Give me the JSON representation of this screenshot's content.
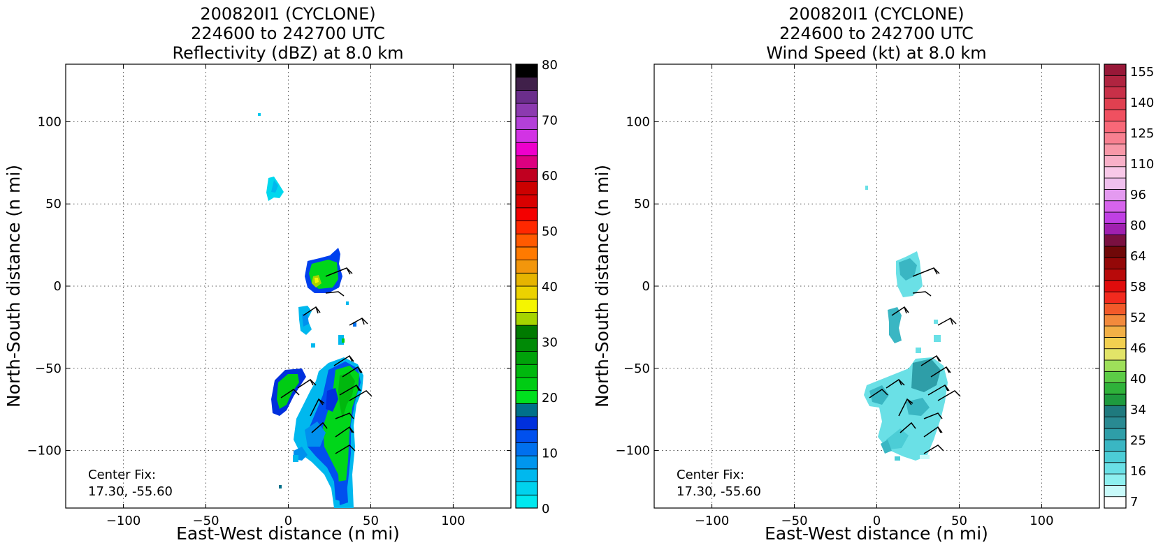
{
  "panels": [
    {
      "title": [
        "200820I1 (CYCLONE)",
        "224600 to 242700 UTC",
        "Reflectivity (dBZ) at 8.0 km"
      ],
      "xlabel": "East-West distance (n mi)",
      "ylabel": "North-South distance (n mi)",
      "xlim": [
        -135,
        135
      ],
      "ylim": [
        -135,
        135
      ],
      "xticks": [
        -100,
        -50,
        0,
        50,
        100
      ],
      "yticks": [
        -100,
        -50,
        0,
        50,
        100
      ],
      "center_fix_label": "Center Fix:",
      "center_fix_value": "17.30, -55.60",
      "colorbar": {
        "label_ticks": [
          "0",
          "10",
          "20",
          "30",
          "40",
          "50",
          "60",
          "70",
          "80"
        ],
        "colors": [
          "#00e8ef",
          "#00d2ee",
          "#00b8ee",
          "#0096ee",
          "#0070ee",
          "#0050ee",
          "#0030dd",
          "#00708a",
          "#00e01e",
          "#00cc14",
          "#00b80e",
          "#00a20a",
          "#008a06",
          "#007a00",
          "#a6d400",
          "#f5f500",
          "#ecd200",
          "#e6b400",
          "#f2960c",
          "#ff7a00",
          "#ff5a00",
          "#ff2800",
          "#f40000",
          "#d90000",
          "#cc0000",
          "#c00020",
          "#dd0080",
          "#ee00cc",
          "#d233e4",
          "#b340d9",
          "#8c3ab0",
          "#6b2e8c",
          "#40204a",
          "#000000"
        ]
      }
    },
    {
      "title": [
        "200820I1 (CYCLONE)",
        "224600 to 242700 UTC",
        "Wind Speed (kt) at 8.0 km"
      ],
      "xlabel": "East-West distance (n mi)",
      "ylabel": "North-South distance (n mi)",
      "xlim": [
        -135,
        135
      ],
      "ylim": [
        -135,
        135
      ],
      "xticks": [
        -100,
        -50,
        0,
        50,
        100
      ],
      "yticks": [
        -100,
        -50,
        0,
        50,
        100
      ],
      "center_fix_label": "Center Fix:",
      "center_fix_value": "17.30, -55.60",
      "colorbar": {
        "label_ticks": [
          "7",
          "16",
          "25",
          "34",
          "40",
          "46",
          "52",
          "58",
          "64",
          "80",
          "96",
          "110",
          "125",
          "140",
          "155"
        ],
        "colors": [
          "#ffffff",
          "#c8fafa",
          "#8ef0f0",
          "#6ae0e6",
          "#4ccdd6",
          "#3ab6c3",
          "#2e9ea8",
          "#298a92",
          "#1f7a7e",
          "#1e9a3e",
          "#2fb23a",
          "#5ccc46",
          "#9ee05a",
          "#e2e468",
          "#f2d050",
          "#f2b046",
          "#f28a3c",
          "#f25a2a",
          "#f22a1e",
          "#e00c0c",
          "#b80a0a",
          "#940808",
          "#700808",
          "#7a1040",
          "#a020b0",
          "#c040e4",
          "#d664ec",
          "#e49af0",
          "#f0c0ee",
          "#f8c8e8",
          "#f8b0c8",
          "#f898a8",
          "#f88090",
          "#f86878",
          "#f05060",
          "#e04050",
          "#c83048",
          "#b02440",
          "#981838"
        ]
      }
    }
  ],
  "chart_data": [
    {
      "type": "heatmap",
      "title": "200820I1 (CYCLONE) 224600 to 242700 UTC Reflectivity (dBZ) at 8.0 km",
      "xlabel": "East-West distance (n mi)",
      "ylabel": "North-South distance (n mi)",
      "xlim": [
        -135,
        135
      ],
      "ylim": [
        -135,
        135
      ],
      "grid": true,
      "colorbar_range": [
        0,
        80
      ],
      "regions": [
        {
          "x": [
            -3,
            2
          ],
          "y": [
            53,
            67
          ],
          "value": 4
        },
        {
          "x": [
            -18,
            -16
          ],
          "y": [
            104,
            106
          ],
          "value": 6
        },
        {
          "x": [
            11,
            32
          ],
          "y": [
            -5,
            17
          ],
          "value": 22
        },
        {
          "x": [
            7,
            18
          ],
          "y": [
            -35,
            -12
          ],
          "value": 8
        },
        {
          "x": [
            -10,
            10
          ],
          "y": [
            -80,
            -52
          ],
          "value": 20
        },
        {
          "x": [
            0,
            45
          ],
          "y": [
            -135,
            -50
          ],
          "value": 18
        }
      ],
      "wind_barbs_note": "present"
    },
    {
      "type": "heatmap",
      "title": "200820I1 (CYCLONE) 224600 to 242700 UTC Wind Speed (kt) at 8.0 km",
      "xlabel": "East-West distance (n mi)",
      "ylabel": "North-South distance (n mi)",
      "xlim": [
        -135,
        135
      ],
      "ylim": [
        -135,
        135
      ],
      "grid": true,
      "colorbar_range": [
        7,
        160
      ],
      "regions": [
        {
          "x": [
            -6,
            -4
          ],
          "y": [
            58,
            61
          ],
          "value": 16
        },
        {
          "x": [
            12,
            28
          ],
          "y": [
            -8,
            20
          ],
          "value": 22
        },
        {
          "x": [
            6,
            20
          ],
          "y": [
            -35,
            -12
          ],
          "value": 22
        },
        {
          "x": [
            -6,
            45
          ],
          "y": [
            -108,
            -48
          ],
          "value": 18
        }
      ],
      "wind_barbs_note": "present"
    }
  ]
}
